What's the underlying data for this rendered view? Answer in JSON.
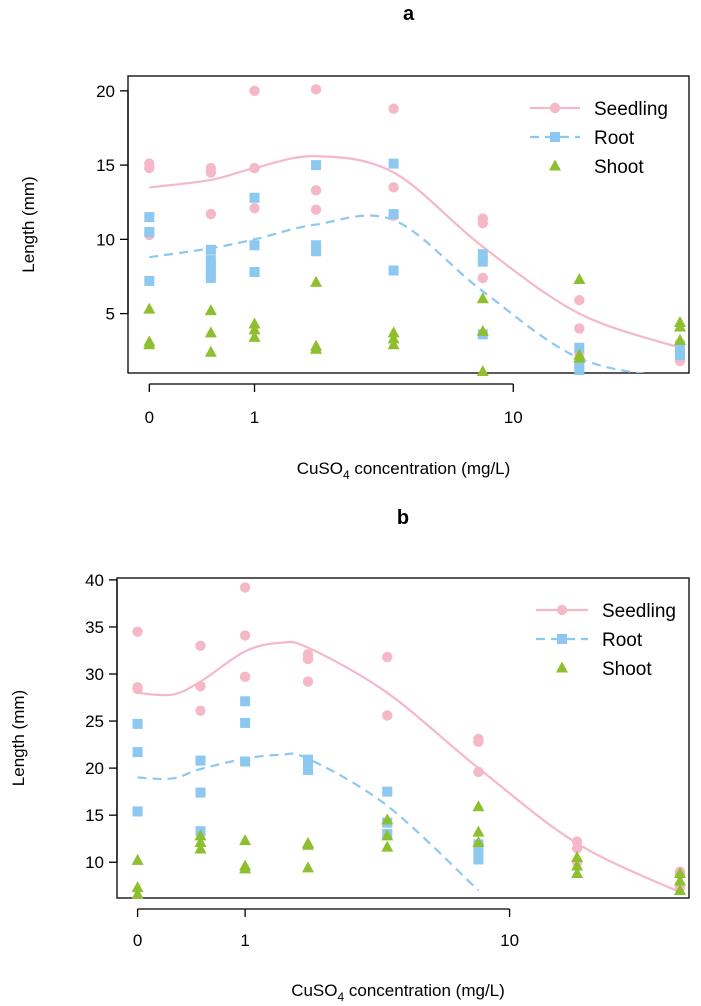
{
  "colors": {
    "seedling": "#F5B8C6",
    "root": "#8CC8F0",
    "shoot": "#8DBF2E",
    "axis": "#000000",
    "background": "#ffffff"
  },
  "chart_data": [
    {
      "type": "scatter",
      "title": "a",
      "xlabel": "CuSO4 concentration (mg/L)",
      "xlabel_main": "CuSO",
      "xlabel_sub": "4",
      "xlabel_rest": " concentration (mg/L)",
      "ylabel": "Length (mm)",
      "x_scale": "log10(x+1)",
      "x_tick_values": [
        0,
        1,
        10
      ],
      "x_tick_labels": [
        "0",
        "1",
        "10"
      ],
      "xlim": [
        0,
        32
      ],
      "ylim": [
        1,
        21
      ],
      "y_ticks": [
        5,
        10,
        15,
        20
      ],
      "legend": {
        "position": "top-right",
        "entries": [
          "Seedling",
          "Root",
          "Shoot"
        ]
      },
      "series": [
        {
          "name": "Seedling",
          "marker": "circle",
          "line": "solid",
          "points": [
            [
              0,
              15.1
            ],
            [
              0,
              14.8
            ],
            [
              0,
              10.3
            ],
            [
              0.5,
              14.8
            ],
            [
              0.5,
              14.5
            ],
            [
              0.5,
              11.7
            ],
            [
              1,
              20.0
            ],
            [
              1,
              14.8
            ],
            [
              1,
              12.1
            ],
            [
              2,
              20.1
            ],
            [
              2,
              13.3
            ],
            [
              2,
              12.0
            ],
            [
              4,
              18.8
            ],
            [
              4,
              13.5
            ],
            [
              4,
              11.6
            ],
            [
              8,
              11.4
            ],
            [
              8,
              11.1
            ],
            [
              8,
              7.4
            ],
            [
              16,
              5.9
            ],
            [
              16,
              4.0
            ],
            [
              16,
              2.3
            ],
            [
              32,
              3.0
            ],
            [
              32,
              2.1
            ],
            [
              32,
              1.8
            ]
          ],
          "fit": [
            [
              0,
              13.5
            ],
            [
              0.5,
              14.0
            ],
            [
              1,
              14.8
            ],
            [
              2,
              15.6
            ],
            [
              4,
              14.5
            ],
            [
              8,
              9.5
            ],
            [
              16,
              5.0
            ],
            [
              32,
              2.7
            ]
          ]
        },
        {
          "name": "Root",
          "marker": "square",
          "line": "dashed",
          "points": [
            [
              0,
              11.5
            ],
            [
              0,
              10.5
            ],
            [
              0,
              7.2
            ],
            [
              0.5,
              9.3
            ],
            [
              0.5,
              8.6
            ],
            [
              0.5,
              8.2
            ],
            [
              0.5,
              7.8
            ],
            [
              0.5,
              7.4
            ],
            [
              1,
              12.8
            ],
            [
              1,
              9.6
            ],
            [
              1,
              7.8
            ],
            [
              2,
              15.0
            ],
            [
              2,
              9.6
            ],
            [
              2,
              9.2
            ],
            [
              4,
              15.1
            ],
            [
              4,
              11.7
            ],
            [
              4,
              7.9
            ],
            [
              8,
              9.0
            ],
            [
              8,
              8.5
            ],
            [
              8,
              3.6
            ],
            [
              16,
              2.7
            ],
            [
              16,
              1.5
            ],
            [
              16,
              1.2
            ],
            [
              32,
              2.8
            ],
            [
              32,
              2.4
            ],
            [
              32,
              2.2
            ]
          ],
          "fit": [
            [
              0,
              8.8
            ],
            [
              0.5,
              9.4
            ],
            [
              1,
              10.0
            ],
            [
              2,
              11.0
            ],
            [
              4,
              11.3
            ],
            [
              8,
              6.5
            ],
            [
              16,
              2.0
            ],
            [
              32,
              0.6
            ]
          ]
        },
        {
          "name": "Shoot",
          "marker": "triangle",
          "line": "none",
          "points": [
            [
              0,
              5.3
            ],
            [
              0,
              3.1
            ],
            [
              0,
              2.9
            ],
            [
              0.5,
              5.2
            ],
            [
              0.5,
              3.7
            ],
            [
              0.5,
              2.4
            ],
            [
              1,
              4.3
            ],
            [
              1,
              3.9
            ],
            [
              1,
              3.4
            ],
            [
              2,
              7.1
            ],
            [
              2,
              2.8
            ],
            [
              2,
              2.6
            ],
            [
              4,
              3.7
            ],
            [
              4,
              3.3
            ],
            [
              4,
              2.9
            ],
            [
              8,
              6.0
            ],
            [
              8,
              3.8
            ],
            [
              8,
              1.1
            ],
            [
              16,
              7.3
            ],
            [
              16,
              2.2
            ],
            [
              16,
              2.0
            ],
            [
              32,
              4.4
            ],
            [
              32,
              4.1
            ],
            [
              32,
              3.2
            ]
          ]
        }
      ]
    },
    {
      "type": "scatter",
      "title": "b",
      "xlabel": "CuSO4 concentration (mg/L)",
      "xlabel_main": "CuSO",
      "xlabel_sub": "4",
      "xlabel_rest": " concentration (mg/L)",
      "ylabel": "Length (mm)",
      "x_scale": "log10(x+1)",
      "x_tick_values": [
        0,
        1,
        10
      ],
      "x_tick_labels": [
        "0",
        "1",
        "10"
      ],
      "xlim": [
        0,
        32
      ],
      "ylim": [
        6.2,
        40.2
      ],
      "y_ticks": [
        10,
        15,
        20,
        25,
        30,
        35,
        40
      ],
      "legend": {
        "position": "top-right",
        "entries": [
          "Seedling",
          "Root",
          "Shoot"
        ]
      },
      "series": [
        {
          "name": "Seedling",
          "marker": "circle",
          "line": "solid",
          "points": [
            [
              0,
              34.5
            ],
            [
              0,
              28.6
            ],
            [
              0,
              28.4
            ],
            [
              0.5,
              33.0
            ],
            [
              0.5,
              28.7
            ],
            [
              0.5,
              26.1
            ],
            [
              1,
              39.2
            ],
            [
              1,
              34.1
            ],
            [
              1,
              29.7
            ],
            [
              2,
              32.1
            ],
            [
              2,
              31.6
            ],
            [
              2,
              29.2
            ],
            [
              4,
              31.8
            ],
            [
              4,
              25.6
            ],
            [
              8,
              23.1
            ],
            [
              8,
              22.8
            ],
            [
              8,
              19.6
            ],
            [
              16,
              12.2
            ],
            [
              16,
              11.5
            ],
            [
              16,
              10.0
            ],
            [
              32,
              9.0
            ],
            [
              32,
              8.7
            ],
            [
              32,
              7.3
            ]
          ],
          "fit": [
            [
              0,
              28.0
            ],
            [
              0.25,
              27.8
            ],
            [
              0.5,
              29.2
            ],
            [
              1,
              32.4
            ],
            [
              1.5,
              33.3
            ],
            [
              2,
              32.8
            ],
            [
              4,
              28.0
            ],
            [
              8,
              20.0
            ],
            [
              16,
              12.0
            ],
            [
              32,
              6.8
            ]
          ]
        },
        {
          "name": "Root",
          "marker": "square",
          "line": "dashed",
          "points": [
            [
              0,
              24.7
            ],
            [
              0,
              21.7
            ],
            [
              0,
              15.4
            ],
            [
              0.5,
              20.8
            ],
            [
              0.5,
              17.4
            ],
            [
              0.5,
              13.3
            ],
            [
              1,
              27.1
            ],
            [
              1,
              24.8
            ],
            [
              1,
              20.7
            ],
            [
              2,
              20.9
            ],
            [
              2,
              20.3
            ],
            [
              2,
              19.8
            ],
            [
              4,
              17.5
            ],
            [
              4,
              14.2
            ],
            [
              4,
              13.0
            ],
            [
              8,
              11.9
            ],
            [
              8,
              11.0
            ],
            [
              8,
              10.3
            ]
          ],
          "fit": [
            [
              0,
              19.0
            ],
            [
              0.25,
              18.9
            ],
            [
              0.5,
              19.9
            ],
            [
              1,
              21.0
            ],
            [
              1.5,
              21.4
            ],
            [
              2,
              21.0
            ],
            [
              4,
              16.0
            ],
            [
              8,
              7.0
            ]
          ]
        },
        {
          "name": "Shoot",
          "marker": "triangle",
          "line": "none",
          "points": [
            [
              0,
              10.2
            ],
            [
              0,
              7.3
            ],
            [
              0,
              6.6
            ],
            [
              0.5,
              12.8
            ],
            [
              0.5,
              12.1
            ],
            [
              0.5,
              11.4
            ],
            [
              1,
              12.3
            ],
            [
              1,
              9.6
            ],
            [
              1,
              9.3
            ],
            [
              2,
              12.0
            ],
            [
              2,
              11.8
            ],
            [
              2,
              9.4
            ],
            [
              4,
              14.5
            ],
            [
              4,
              12.8
            ],
            [
              4,
              11.6
            ],
            [
              8,
              15.9
            ],
            [
              8,
              13.2
            ],
            [
              8,
              12.1
            ],
            [
              16,
              10.5
            ],
            [
              16,
              9.6
            ],
            [
              16,
              8.8
            ],
            [
              32,
              8.8
            ],
            [
              32,
              8.0
            ],
            [
              32,
              7.0
            ]
          ]
        }
      ]
    }
  ]
}
